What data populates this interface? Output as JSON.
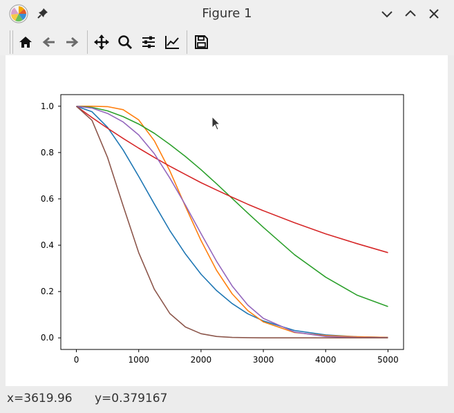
{
  "window": {
    "title": "Figure 1"
  },
  "status": {
    "x_text": "x=3619.96",
    "y_text": "y=0.379167"
  },
  "toolbar": {
    "tools": [
      "home-icon",
      "back-icon",
      "forward-icon",
      "pan-icon",
      "zoom-icon",
      "configure-subplots-icon",
      "edit-axes-icon",
      "save-icon"
    ]
  },
  "chart_data": {
    "type": "line",
    "xlim": [
      -250,
      5250
    ],
    "ylim": [
      -0.05,
      1.05
    ],
    "x_ticks": [
      0,
      1000,
      2000,
      3000,
      4000,
      5000
    ],
    "y_ticks": [
      0.0,
      0.2,
      0.4,
      0.6,
      0.8,
      1.0
    ],
    "x_tick_labels": [
      "0",
      "1000",
      "2000",
      "3000",
      "4000",
      "5000"
    ],
    "y_tick_labels": [
      "0.0",
      "0.2",
      "0.4",
      "0.6",
      "0.8",
      "1.0"
    ],
    "grid": false,
    "series": [
      {
        "color": "#1f77b4",
        "x": [
          0,
          250,
          500,
          750,
          1000,
          1250,
          1500,
          1750,
          2000,
          2250,
          2500,
          2750,
          3000,
          3500,
          4000,
          4500,
          5000
        ],
        "y": [
          1.0,
          0.976,
          0.909,
          0.811,
          0.697,
          0.578,
          0.463,
          0.362,
          0.275,
          0.204,
          0.148,
          0.104,
          0.073,
          0.032,
          0.013,
          0.005,
          0.002
        ]
      },
      {
        "color": "#ff7f0e",
        "x": [
          0,
          250,
          500,
          750,
          1000,
          1250,
          1500,
          1750,
          2000,
          2250,
          2500,
          2750,
          3000,
          3500,
          4000,
          4500,
          5000
        ],
        "y": [
          1.0,
          1.0,
          0.998,
          0.985,
          0.941,
          0.851,
          0.721,
          0.567,
          0.42,
          0.291,
          0.19,
          0.118,
          0.069,
          0.023,
          0.01,
          0.005,
          0.002
        ]
      },
      {
        "color": "#2ca02c",
        "x": [
          0,
          250,
          500,
          750,
          1000,
          1250,
          1500,
          1750,
          2000,
          2250,
          2500,
          2750,
          3000,
          3500,
          4000,
          4500,
          5000
        ],
        "y": [
          1.0,
          0.995,
          0.98,
          0.955,
          0.923,
          0.883,
          0.835,
          0.783,
          0.726,
          0.665,
          0.602,
          0.539,
          0.477,
          0.359,
          0.262,
          0.185,
          0.135
        ]
      },
      {
        "color": "#d62728",
        "x": [
          0,
          250,
          500,
          750,
          1000,
          1250,
          1500,
          1750,
          2000,
          2250,
          2500,
          2750,
          3000,
          3500,
          4000,
          4500,
          5000
        ],
        "y": [
          1.0,
          0.951,
          0.905,
          0.861,
          0.819,
          0.779,
          0.741,
          0.705,
          0.67,
          0.638,
          0.607,
          0.577,
          0.549,
          0.497,
          0.449,
          0.407,
          0.368
        ]
      },
      {
        "color": "#9467bd",
        "x": [
          0,
          250,
          500,
          750,
          1000,
          1250,
          1500,
          1750,
          2000,
          2250,
          2500,
          2750,
          3000,
          3500,
          4000,
          4500,
          5000
        ],
        "y": [
          1.0,
          0.992,
          0.969,
          0.932,
          0.876,
          0.795,
          0.69,
          0.573,
          0.45,
          0.33,
          0.224,
          0.142,
          0.084,
          0.025,
          0.006,
          0.002,
          0.001
        ]
      },
      {
        "color": "#8c564b",
        "x": [
          0,
          250,
          500,
          750,
          1000,
          1250,
          1500,
          1750,
          2000,
          2250,
          2500,
          2750,
          3000,
          3500,
          4000,
          4500,
          5000
        ],
        "y": [
          1.0,
          0.939,
          0.779,
          0.57,
          0.368,
          0.21,
          0.105,
          0.047,
          0.018,
          0.006,
          0.002,
          0.001,
          0.0,
          0.0,
          0.0,
          0.0,
          0.0
        ]
      }
    ]
  }
}
